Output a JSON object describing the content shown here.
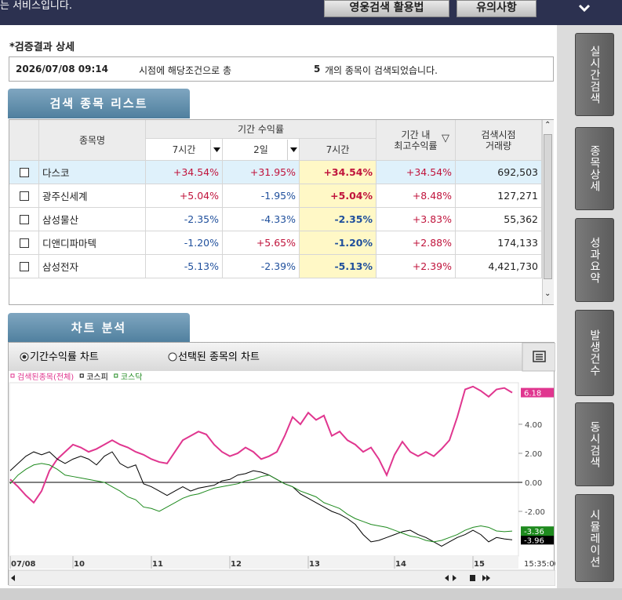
{
  "top_bar": {
    "notice": "는 서비스입니다.",
    "buttons": [
      "영웅검색 활용법",
      "유의사항"
    ]
  },
  "side_tabs": [
    "실시간검색",
    "종목상세",
    "성과요약",
    "발생건수",
    "동시검색",
    "시뮬레이션"
  ],
  "result": {
    "heading": "*검증결과 상세",
    "time": "2026/07/08 09:14",
    "text_before": "시점에 해당조건으로 총",
    "count": "5",
    "text_after": "개의 종목이 검색되었습니다."
  },
  "list": {
    "tab": "검색 종목 리스트",
    "headers": {
      "name": "종목명",
      "period": "기간 수익률",
      "sub": [
        "7시간",
        "2일",
        "7시간"
      ],
      "max": [
        "기간 내",
        "최고수익률"
      ],
      "volume": [
        "검색시점",
        "거래량"
      ]
    },
    "rows": [
      [
        "다스코",
        "+34.54%",
        "+31.95%",
        "+34.54%",
        "+34.54%",
        "692,503"
      ],
      [
        "광주신세계",
        "+5.04%",
        "-1.95%",
        "+5.04%",
        "+8.48%",
        "127,271"
      ],
      [
        "삼성물산",
        "-2.35%",
        "-4.33%",
        "-2.35%",
        "+3.83%",
        "55,362"
      ],
      [
        "디앤디파마텍",
        "-1.20%",
        "+5.65%",
        "-1.20%",
        "+2.88%",
        "174,133"
      ],
      [
        "삼성전자",
        "-5.13%",
        "-2.39%",
        "-5.13%",
        "+2.39%",
        "4,421,730"
      ]
    ]
  },
  "chart_panel": {
    "tab": "차트 분석",
    "options": [
      "기간수익률 차트",
      "선택된 종목의 차트"
    ]
  },
  "chart_data": {
    "type": "line",
    "categories": [
      "07/08",
      null,
      null,
      null,
      null,
      null,
      null,
      null,
      "10",
      null,
      null,
      null,
      null,
      null,
      null,
      null,
      null,
      null,
      "11",
      null,
      null,
      null,
      null,
      null,
      null,
      null,
      null,
      null,
      "12",
      null,
      null,
      null,
      null,
      null,
      null,
      null,
      null,
      null,
      "13",
      null,
      null,
      null,
      null,
      null,
      null,
      null,
      null,
      null,
      null,
      "14",
      null,
      null,
      null,
      null,
      null,
      null,
      null,
      null,
      null,
      "15",
      null,
      null,
      null,
      null,
      null
    ],
    "time_label": "15:35:00",
    "ylim": [
      -5.08,
      6.86
    ],
    "yticks": [
      {
        "value": 4,
        "label": "4.00"
      },
      {
        "value": 2,
        "label": "2.00"
      },
      {
        "value": 0,
        "label": "0.00"
      },
      {
        "value": -2,
        "label": "-2.00"
      }
    ],
    "series": [
      {
        "name": "검색된종목(전체)",
        "color": "#e0368f",
        "values": [
          0.2,
          -0.3,
          -0.9,
          -1.4,
          -0.6,
          0.8,
          1.6,
          2.1,
          2.6,
          2.4,
          2.1,
          2.3,
          2.6,
          2.9,
          2.6,
          2.4,
          2.1,
          1.9,
          1.6,
          1.4,
          1.3,
          2.1,
          2.9,
          3.2,
          3.5,
          3.3,
          2.6,
          2.1,
          1.8,
          2.0,
          2.4,
          2.1,
          1.6,
          1.8,
          2.1,
          3.2,
          4.5,
          4.0,
          4.8,
          4.3,
          4.6,
          3.2,
          3.5,
          2.9,
          2.6,
          2.1,
          2.4,
          1.6,
          0.5,
          1.9,
          2.8,
          2.1,
          1.8,
          2.1,
          1.8,
          2.3,
          2.9,
          4.5,
          6.4,
          6.6,
          6.3,
          5.9,
          6.4,
          6.5,
          6.18
        ]
      },
      {
        "name": "코스피",
        "color": "#000000",
        "values": [
          0.8,
          1.3,
          1.8,
          2.1,
          1.9,
          2.1,
          1.6,
          1.3,
          1.6,
          1.8,
          1.6,
          1.2,
          1.8,
          2.1,
          1.3,
          1.0,
          1.2,
          -0.1,
          -0.3,
          -0.6,
          -0.9,
          -0.6,
          -0.3,
          -0.6,
          -0.4,
          -0.3,
          -0.2,
          0.1,
          0.2,
          0.5,
          0.6,
          0.8,
          0.7,
          0.5,
          0.2,
          -0.1,
          -0.3,
          -0.8,
          -1.1,
          -1.4,
          -1.7,
          -2.0,
          -2.2,
          -2.5,
          -2.9,
          -3.6,
          -4.1,
          -4.0,
          -3.8,
          -3.6,
          -3.4,
          -3.3,
          -3.6,
          -3.8,
          -4.1,
          -4.4,
          -4.1,
          -3.8,
          -3.6,
          -3.3,
          -3.6,
          -4.1,
          -3.8,
          -3.9,
          -3.96
        ]
      },
      {
        "name": "코스닥",
        "color": "#1e8a1e",
        "values": [
          -0.1,
          0.5,
          0.9,
          1.2,
          1.3,
          1.2,
          0.9,
          0.5,
          0.4,
          0.3,
          0.2,
          0.1,
          0.0,
          -0.3,
          -0.6,
          -1.0,
          -1.2,
          -1.7,
          -1.8,
          -2.0,
          -1.7,
          -1.4,
          -1.1,
          -0.9,
          -0.8,
          -0.6,
          -0.4,
          -0.3,
          -0.2,
          -0.1,
          0.1,
          0.2,
          0.4,
          0.5,
          0.2,
          -0.1,
          -0.3,
          -0.6,
          -0.8,
          -1.0,
          -1.4,
          -1.6,
          -1.8,
          -2.2,
          -2.5,
          -2.7,
          -2.9,
          -3.0,
          -3.1,
          -3.3,
          -3.5,
          -3.7,
          -3.8,
          -4.0,
          -4.1,
          -4.0,
          -3.8,
          -3.6,
          -3.3,
          -3.1,
          -3.0,
          -3.1,
          -3.35,
          -3.4,
          -3.36
        ]
      }
    ]
  }
}
